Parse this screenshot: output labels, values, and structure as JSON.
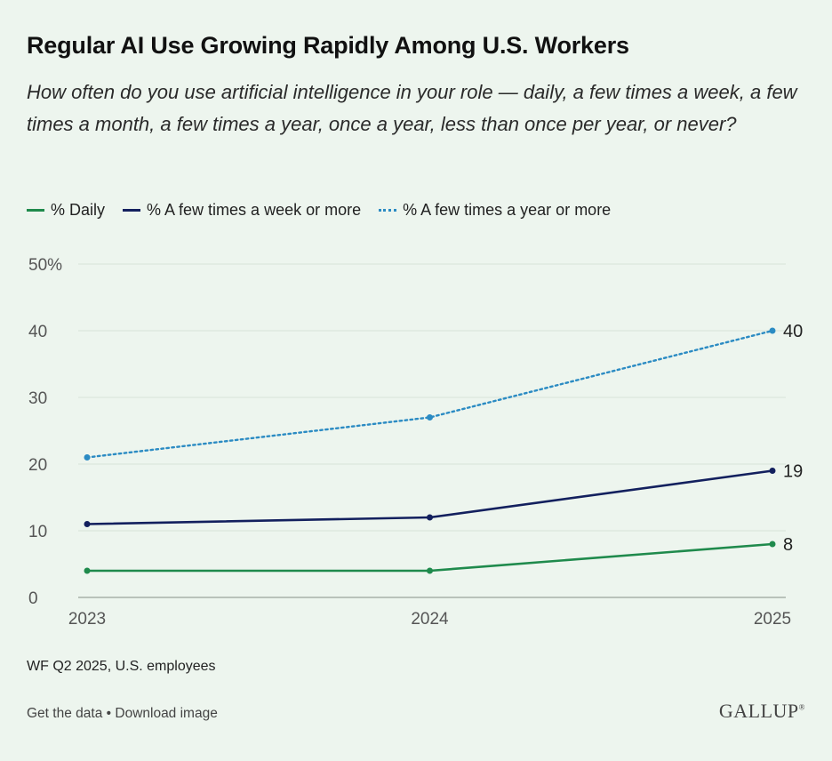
{
  "header": {
    "title": "Regular AI Use Growing Rapidly Among U.S. Workers",
    "subtitle": "How often do you use artificial intelligence in your role — daily, a few times a week, a few times a month, a few times a year, once a year, less than once per year, or never?"
  },
  "legend": {
    "items": [
      "% Daily",
      "% A few times a week or more",
      "% A few times a year or more"
    ]
  },
  "colors": {
    "daily": "#1f8a4c",
    "weekly": "#13205e",
    "yearly": "#2b8bc3",
    "grid": "#d6e3d8",
    "background": "#edf5ee"
  },
  "chart_data": {
    "type": "line",
    "title": "Regular AI Use Growing Rapidly Among U.S. Workers",
    "categories": [
      "2023",
      "2024",
      "2025"
    ],
    "series": [
      {
        "name": "% Daily",
        "values": [
          4,
          4,
          8
        ],
        "style": "solid",
        "color_key": "daily",
        "end_label": "8"
      },
      {
        "name": "% A few times a week or more",
        "values": [
          11,
          12,
          19
        ],
        "style": "solid",
        "color_key": "weekly",
        "end_label": "19"
      },
      {
        "name": "% A few times a year or more",
        "values": [
          21,
          27,
          40
        ],
        "style": "dotted",
        "color_key": "yearly",
        "end_label": "40"
      }
    ],
    "ylim": [
      0,
      50
    ],
    "yticks": [
      0,
      10,
      20,
      30,
      40,
      50
    ],
    "ytick_labels": [
      "0",
      "10",
      "20",
      "30",
      "40",
      "50%"
    ],
    "xlabel": "",
    "ylabel": "",
    "grid": true
  },
  "source": "WF Q2 2025, U.S. employees",
  "footer": {
    "get_data": "Get the data",
    "separator": "•",
    "download": "Download image",
    "logo": "GALLUP",
    "logo_mark": "®"
  }
}
